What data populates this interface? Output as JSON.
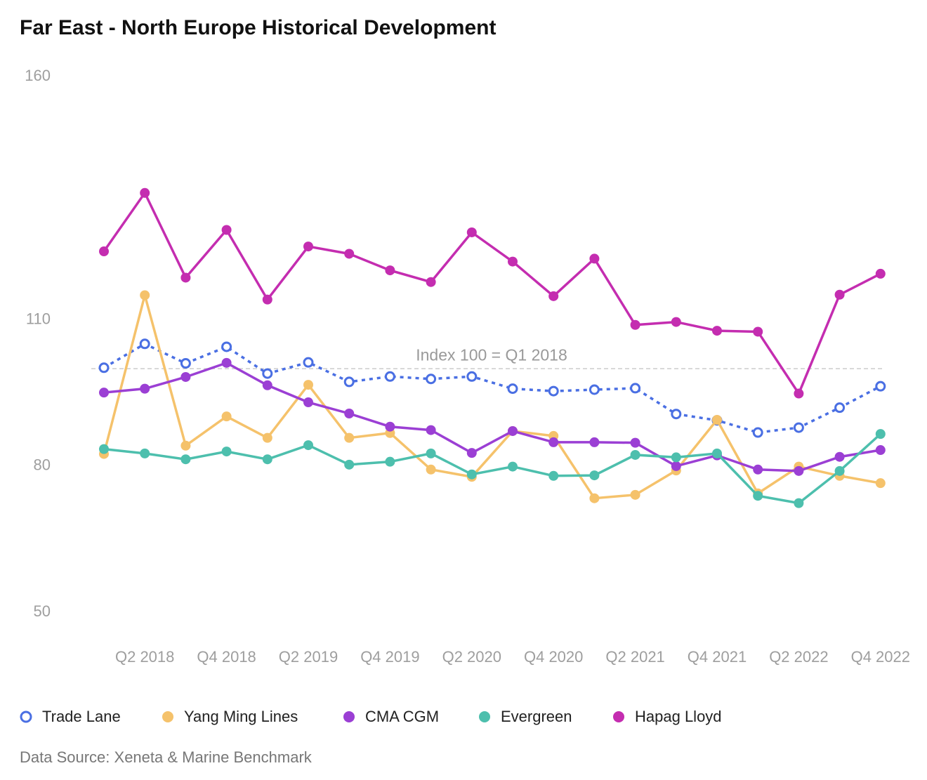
{
  "chart_data": {
    "type": "line",
    "title": "Far East - North Europe Historical Development",
    "source": "Data Source: Xeneta & Marine Benchmark",
    "categories": [
      null,
      "Q2 2018",
      null,
      "Q4 2018",
      null,
      "Q2 2019",
      null,
      "Q4 2019",
      null,
      "Q2 2020",
      null,
      "Q4 2020",
      null,
      "Q2 2021",
      null,
      "Q4 2021",
      null,
      "Q2 2022",
      null,
      "Q4 2022"
    ],
    "series": [
      {
        "name": "Trade Lane",
        "color": "#4a6fe3",
        "dashed": true,
        "hollow": true,
        "values": [
          100.2,
          105.1,
          101.1,
          104.5,
          99.0,
          101.3,
          97.3,
          98.4,
          97.9,
          98.4,
          95.9,
          95.4,
          95.7,
          96.0,
          90.7,
          89.4,
          86.9,
          87.9,
          92.0,
          96.4
        ]
      },
      {
        "name": "Yang Ming Lines",
        "color": "#f5c26b",
        "values": [
          82.5,
          115.1,
          84.2,
          90.2,
          85.8,
          96.7,
          85.8,
          86.8,
          79.3,
          77.8,
          87.2,
          86.2,
          73.4,
          74.1,
          79.1,
          89.5,
          74.4,
          79.9,
          78.0,
          76.5
        ]
      },
      {
        "name": "CMA CGM",
        "color": "#9b3fd4",
        "values": [
          95.1,
          95.9,
          98.3,
          101.2,
          96.6,
          93.1,
          90.8,
          88.1,
          87.4,
          82.7,
          87.2,
          84.9,
          84.9,
          84.8,
          80.0,
          82.2,
          79.3,
          79.0,
          81.9,
          83.3
        ]
      },
      {
        "name": "Evergreen",
        "color": "#4dbfad",
        "values": [
          83.5,
          82.6,
          81.4,
          83.0,
          81.4,
          84.3,
          80.3,
          80.9,
          82.6,
          78.3,
          79.9,
          78.0,
          78.1,
          82.3,
          81.8,
          82.6,
          73.9,
          72.4,
          79.0,
          86.6
        ]
      },
      {
        "name": "Hapag Lloyd",
        "color": "#c42db0",
        "values": [
          124.1,
          136.1,
          118.7,
          128.5,
          114.2,
          125.1,
          123.6,
          120.2,
          117.8,
          128.0,
          122.0,
          114.9,
          122.6,
          109.0,
          109.6,
          107.8,
          107.6,
          94.9,
          115.2,
          119.5
        ]
      }
    ],
    "reference_line": {
      "value": 100,
      "label": "Index 100 = Q1 2018"
    },
    "ylim": [
      50,
      160
    ],
    "yticks": [
      50,
      80,
      110,
      160
    ],
    "grid": false
  }
}
